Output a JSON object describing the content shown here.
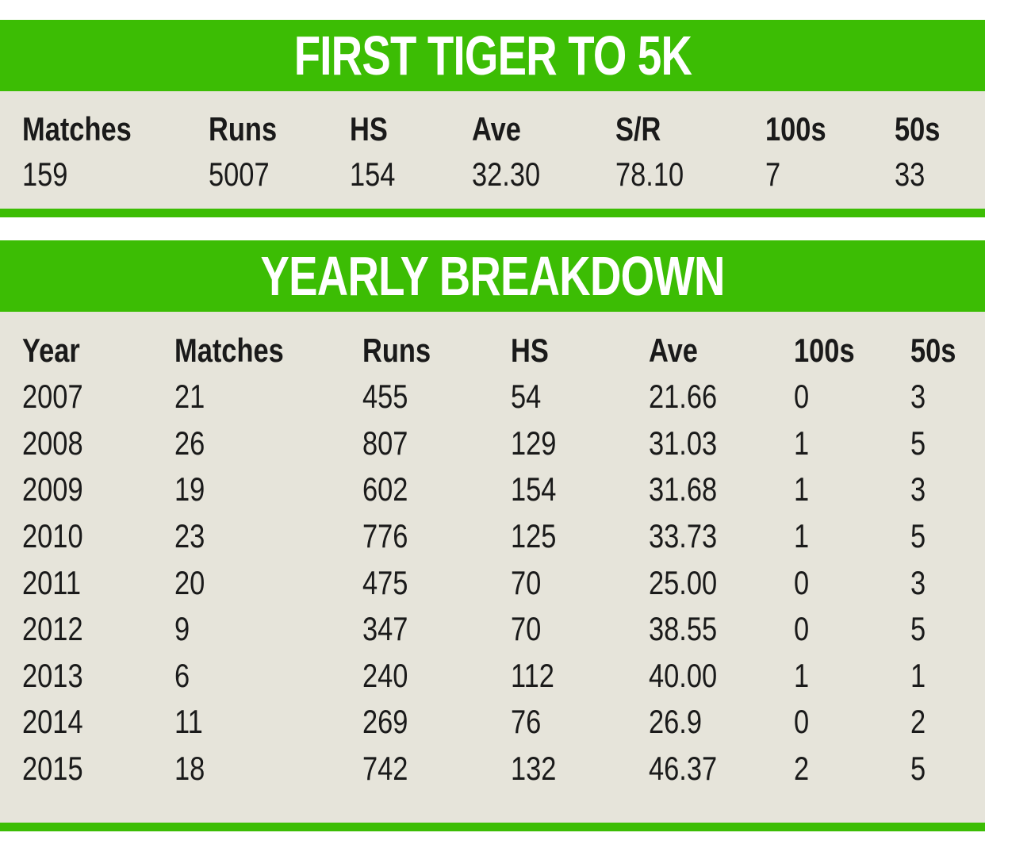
{
  "summary": {
    "title": "FIRST TIGER TO 5K",
    "headers": [
      "Matches",
      "Runs",
      "HS",
      "Ave",
      "S/R",
      "100s",
      "50s"
    ],
    "values": [
      "159",
      "5007",
      "154",
      "32.30",
      "78.10",
      "7",
      "33"
    ]
  },
  "yearly": {
    "title": "YEARLY BREAKDOWN",
    "headers": [
      "Year",
      "Matches",
      "Runs",
      "HS",
      "Ave",
      "100s",
      "50s"
    ],
    "rows": [
      [
        "2007",
        "21",
        "455",
        "54",
        "21.66",
        "0",
        "3"
      ],
      [
        "2008",
        "26",
        "807",
        "129",
        "31.03",
        "1",
        "5"
      ],
      [
        "2009",
        "19",
        "602",
        "154",
        "31.68",
        "1",
        "3"
      ],
      [
        "2010",
        "23",
        "776",
        "125",
        "33.73",
        "1",
        "5"
      ],
      [
        "2011",
        "20",
        "475",
        "70",
        "25.00",
        "0",
        "3"
      ],
      [
        "2012",
        "9",
        "347",
        "70",
        "38.55",
        "0",
        "5"
      ],
      [
        "2013",
        "6",
        "240",
        "112",
        "40.00",
        "1",
        "1"
      ],
      [
        "2014",
        "11",
        "269",
        "76",
        "26.9",
        "0",
        "2"
      ],
      [
        "2015",
        "18",
        "742",
        "132",
        "46.37",
        "2",
        "5"
      ]
    ]
  },
  "colors": {
    "accent_green": "#3cbd04",
    "panel_background": "#e6e4da",
    "text": "#1a1a1a"
  }
}
